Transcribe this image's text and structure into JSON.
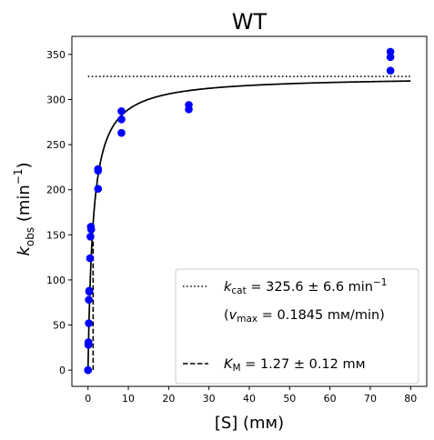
{
  "chart_data": {
    "type": "scatter",
    "title": "WT",
    "xlabel": "[S] (mм)",
    "ylabel": {
      "main": "k",
      "sub": "obs",
      "unit_open": " (min",
      "sup": "−1",
      "unit_close": ")"
    },
    "xlim": [
      -4,
      84
    ],
    "ylim": [
      -18,
      370
    ],
    "xticks": [
      0,
      10,
      20,
      30,
      40,
      50,
      60,
      70,
      80
    ],
    "yticks": [
      0,
      50,
      100,
      150,
      200,
      250,
      300,
      350
    ],
    "grid": false,
    "legend_position": "lower-right",
    "series": [
      {
        "kind": "points",
        "color": "#0000ff",
        "x": [
          0,
          0,
          0.1,
          0.1,
          0.2,
          0.2,
          0.3,
          0.3,
          0.5,
          0.6,
          0.7,
          0.8,
          2.5,
          2.5,
          2.5,
          8.3,
          8.3,
          8.3,
          25,
          25,
          75,
          75,
          75
        ],
        "y": [
          0,
          0,
          28,
          31,
          52,
          78,
          88,
          87,
          124,
          148,
          159,
          156,
          201,
          221,
          223,
          263,
          278,
          287,
          289,
          294,
          332,
          347,
          353
        ]
      },
      {
        "kind": "fit",
        "color": "#000000",
        "model": "michaelis-menten",
        "kcat": 325.6,
        "km": 1.27,
        "x_range": [
          0,
          80
        ]
      },
      {
        "kind": "kcat-line",
        "color": "#000000",
        "style": "dotted",
        "y": 325.6,
        "x_range": [
          0,
          80
        ]
      },
      {
        "kind": "km-line",
        "color": "#000000",
        "style": "dashed",
        "x": 1.27,
        "y_range": [
          0,
          162.8
        ]
      }
    ],
    "legend": [
      {
        "style": "dotted",
        "symbol": "k",
        "sub": "cat",
        "text": " = 325.6 ± 6.6 min",
        "sup": "−1"
      },
      {
        "style": "none",
        "text_open": "(",
        "symbol": "v",
        "sub": "max",
        "text": " = 0.1845 mм/min)"
      },
      {
        "style": "dashed",
        "symbol": "K",
        "sub": "M",
        "text": " = 1.27 ± 0.12 mм"
      }
    ]
  }
}
